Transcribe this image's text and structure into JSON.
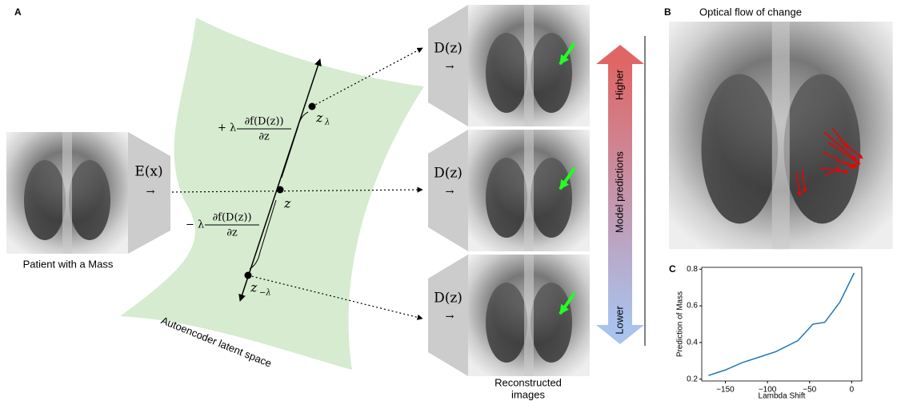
{
  "panels": {
    "a": "A",
    "b": "B",
    "c": "C"
  },
  "input_caption": "Patient with a Mass",
  "encoder": "E(x)",
  "arrow": "→",
  "decoders": [
    "D(z)",
    "D(z)",
    "D(z)"
  ],
  "latent": {
    "z": "z",
    "z_sub_plus": "λ",
    "z_sub_minus": "−λ",
    "plus_term": {
      "sign": "+ λ",
      "numerator": "∂f(D(z))",
      "denominator": "∂z"
    },
    "minus_term": {
      "sign": "− λ",
      "numerator": "∂f(D(z))",
      "denominator": "∂z"
    },
    "space_label": "Autoencoder latent space"
  },
  "reconstructed_caption": [
    "Reconstructed",
    "images"
  ],
  "scale": {
    "higher": "Higher",
    "lower": "Lower",
    "label": "Model predictions"
  },
  "flow_title": "Optical flow of change",
  "chart_data": {
    "type": "line",
    "ylabel": "Prediction of Mass",
    "xlabel": "Lambda Shift",
    "x": [
      -170,
      -150,
      -130,
      -110,
      -90,
      -64,
      -46,
      -32,
      -14,
      3
    ],
    "series": [
      {
        "name": "Prediction of Mass",
        "color": "#1f77b4",
        "values": [
          0.22,
          0.25,
          0.29,
          0.32,
          0.35,
          0.41,
          0.5,
          0.51,
          0.62,
          0.78
        ]
      }
    ],
    "xlim": [
      -178,
      12
    ],
    "ylim": [
      0.19,
      0.81
    ],
    "xticks": [
      {
        "value": -150,
        "label": "−150"
      },
      {
        "value": -100,
        "label": "−100"
      },
      {
        "value": -50,
        "label": "−50"
      },
      0
    ],
    "yticks": [
      0.2,
      0.4,
      0.6,
      0.8
    ]
  }
}
